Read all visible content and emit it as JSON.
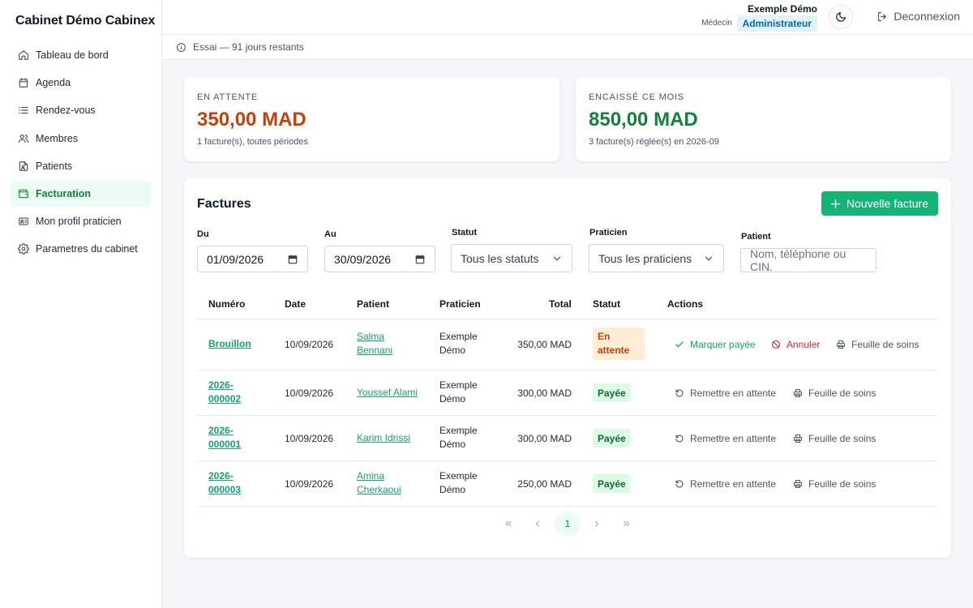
{
  "app": {
    "brand": "Cabinet Démo Cabinex"
  },
  "sidebar": {
    "items": [
      {
        "label": "Tableau de bord",
        "icon": "home-icon"
      },
      {
        "label": "Agenda",
        "icon": "calendar-icon"
      },
      {
        "label": "Rendez-vous",
        "icon": "list-icon"
      },
      {
        "label": "Membres",
        "icon": "users-icon"
      },
      {
        "label": "Patients",
        "icon": "patient-file-icon"
      },
      {
        "label": "Facturation",
        "icon": "wallet-icon"
      },
      {
        "label": "Mon profil praticien",
        "icon": "id-card-icon"
      },
      {
        "label": "Parametres du cabinet",
        "icon": "gear-icon"
      }
    ],
    "active_index": 5
  },
  "header": {
    "user_name": "Exemple Démo",
    "user_role": "Médecin",
    "user_badge": "Administrateur",
    "logout_label": "Deconnexion",
    "trial_text": "Essai — 91 jours restants"
  },
  "stats": {
    "pending": {
      "label": "EN ATTENTE",
      "value": "350,00 MAD",
      "sub": "1 facture(s), toutes périodes"
    },
    "collected": {
      "label": "ENCAISSÉ CE MOIS",
      "value": "850,00 MAD",
      "sub": "3 facture(s) réglée(s) en 2026-09"
    }
  },
  "invoices": {
    "title": "Factures",
    "new_button": "Nouvelle facture",
    "filters": {
      "from_label": "Du",
      "from_value": "01/09/2026",
      "to_label": "Au",
      "to_value": "30/09/2026",
      "status_label": "Statut",
      "status_value": "Tous les statuts",
      "practitioner_label": "Praticien",
      "practitioner_value": "Tous les praticiens",
      "patient_label": "Patient",
      "patient_placeholder": "Nom, téléphone ou CIN."
    },
    "columns": {
      "number": "Numéro",
      "date": "Date",
      "patient": "Patient",
      "practitioner": "Praticien",
      "total": "Total",
      "status": "Statut",
      "actions": "Actions"
    },
    "rows": [
      {
        "num1": "Brouillon",
        "num2": "",
        "date": "10/09/2026",
        "pat1": "Salma",
        "pat2": "Bennani",
        "prac1": "Exemple",
        "prac2": "Démo",
        "total": "350,00 MAD",
        "status1": "En",
        "status2": "attente",
        "act1": "Marquer payée",
        "act2": "Annuler",
        "act3": "Feuille de soins"
      },
      {
        "num1": "2026-",
        "num2": "000002",
        "date": "10/09/2026",
        "pat1": "Youssef Alami",
        "pat2": "",
        "prac1": "Exemple",
        "prac2": "Démo",
        "total": "300,00 MAD",
        "status1": "Payée",
        "act1": "Remettre en attente",
        "act3": "Feuille de soins"
      },
      {
        "num1": "2026-",
        "num2": "000001",
        "date": "10/09/2026",
        "pat1": "Karim Idrissi",
        "pat2": "",
        "prac1": "Exemple",
        "prac2": "Démo",
        "total": "300,00 MAD",
        "status1": "Payée",
        "act1": "Remettre en attente",
        "act3": "Feuille de soins"
      },
      {
        "num1": "2026-",
        "num2": "000003",
        "date": "10/09/2026",
        "pat1": "Amina",
        "pat2": "Cherkaoui",
        "prac1": "Exemple",
        "prac2": "Démo",
        "total": "250,00 MAD",
        "status1": "Payée",
        "act1": "Remettre en attente",
        "act3": "Feuille de soins"
      }
    ],
    "pagination": {
      "current": "1"
    }
  },
  "colors": {
    "accent": "#15b476",
    "pending": "#c2410c",
    "collected": "#15803d",
    "danger": "#dc2626"
  }
}
